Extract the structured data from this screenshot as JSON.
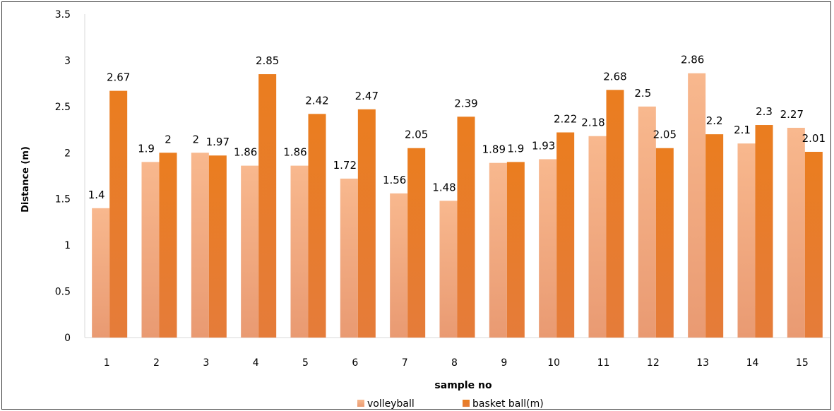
{
  "chart_data": {
    "type": "bar",
    "title": "",
    "xlabel": "sample no",
    "ylabel": "Distance (m)",
    "ylim": [
      0,
      3.5
    ],
    "y_ticks": [
      "0",
      "0.5",
      "1",
      "1.5",
      "2",
      "2.5",
      "3",
      "3.5"
    ],
    "categories": [
      "1",
      "2",
      "3",
      "4",
      "5",
      "6",
      "7",
      "8",
      "9",
      "10",
      "11",
      "12",
      "13",
      "14",
      "15"
    ],
    "series": [
      {
        "name": "volleyball",
        "color": "#f4a578",
        "values": [
          1.4,
          1.9,
          2,
          1.86,
          1.86,
          1.72,
          1.56,
          1.48,
          1.89,
          1.93,
          2.18,
          2.5,
          2.86,
          2.1,
          2.27
        ],
        "labels": [
          "1.4",
          "1.9",
          "2",
          "1.86",
          "1.86",
          "1.72",
          "1.56",
          "1.48",
          "1.89",
          "1.93",
          "2.18",
          "2.5",
          "2.86",
          "2.1",
          "2.27"
        ]
      },
      {
        "name": "basket ball(m)",
        "color": "#e57a22",
        "values": [
          2.67,
          2,
          1.97,
          2.85,
          2.42,
          2.47,
          2.05,
          2.39,
          1.9,
          2.22,
          2.68,
          2.05,
          2.2,
          2.3,
          2.01
        ],
        "labels": [
          "2.67",
          "2",
          "1.97",
          "2.85",
          "2.42",
          "2.47",
          "2.05",
          "2.39",
          "1.9",
          "2.22",
          "2.68",
          "2.05",
          "2.2",
          "2.3",
          "2.01"
        ]
      }
    ],
    "grid": false,
    "legend_position": "bottom"
  }
}
